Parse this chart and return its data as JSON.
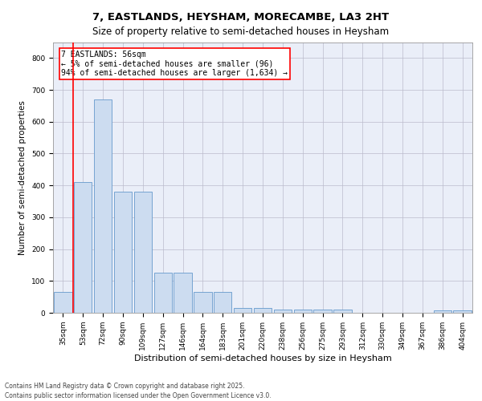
{
  "title": "7, EASTLANDS, HEYSHAM, MORECAMBE, LA3 2HT",
  "subtitle": "Size of property relative to semi-detached houses in Heysham",
  "xlabel": "Distribution of semi-detached houses by size in Heysham",
  "ylabel": "Number of semi-detached properties",
  "bins": [
    "35sqm",
    "53sqm",
    "72sqm",
    "90sqm",
    "109sqm",
    "127sqm",
    "146sqm",
    "164sqm",
    "183sqm",
    "201sqm",
    "220sqm",
    "238sqm",
    "256sqm",
    "275sqm",
    "293sqm",
    "312sqm",
    "330sqm",
    "349sqm",
    "367sqm",
    "386sqm",
    "404sqm"
  ],
  "values": [
    65,
    410,
    670,
    380,
    380,
    125,
    125,
    65,
    65,
    15,
    15,
    10,
    10,
    10,
    10,
    0,
    0,
    0,
    0,
    8,
    8
  ],
  "bar_color": "#ccdcf0",
  "bar_edge_color": "#6699cc",
  "grid_color": "#bbbbcc",
  "bg_color": "#eaeef8",
  "red_line_x": 1,
  "annotation_text": "7 EASTLANDS: 56sqm\n← 5% of semi-detached houses are smaller (96)\n94% of semi-detached houses are larger (1,634) →",
  "annotation_box_color": "white",
  "annotation_box_edge": "red",
  "ylim": [
    0,
    850
  ],
  "yticks": [
    0,
    100,
    200,
    300,
    400,
    500,
    600,
    700,
    800
  ],
  "footer": "Contains HM Land Registry data © Crown copyright and database right 2025.\nContains public sector information licensed under the Open Government Licence v3.0.",
  "title_fontsize": 9.5,
  "subtitle_fontsize": 8.5,
  "xlabel_fontsize": 8,
  "ylabel_fontsize": 7.5,
  "tick_fontsize": 6.5,
  "annotation_fontsize": 7,
  "footer_fontsize": 5.5
}
